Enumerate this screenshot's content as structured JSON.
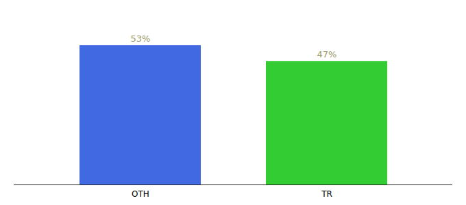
{
  "chart_data": {
    "type": "bar",
    "categories": [
      "OTH",
      "TR"
    ],
    "values": [
      53,
      47
    ],
    "value_labels": [
      "53%",
      "47%"
    ],
    "colors": [
      "#4169e1",
      "#33cc33"
    ],
    "ylim": [
      0,
      65
    ],
    "data_labels": true,
    "grid": false,
    "tick_labels": "x"
  }
}
